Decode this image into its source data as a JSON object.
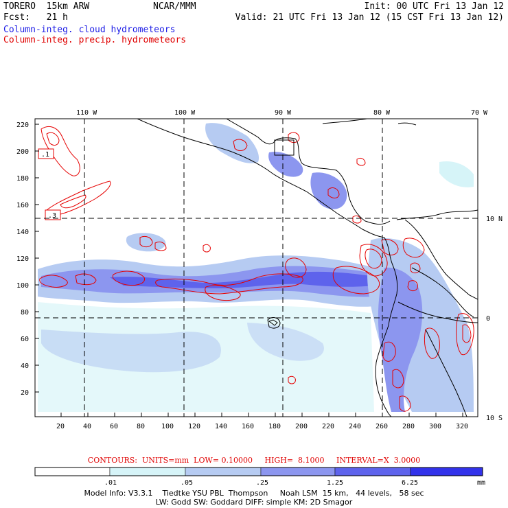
{
  "header": {
    "title": "TORERO  15km ARW",
    "org": "NCAR/MMM",
    "init": "Init: 00 UTC Fri 13 Jan 12",
    "fcst": "Fcst:   21 h",
    "valid": "Valid: 21 UTC Fri 13 Jan 12 (15 CST Fri 13 Jan 12)"
  },
  "fields": {
    "cloud": "Column-integ. cloud hydrometeors",
    "precip": "Column-integ. precip. hydrometeors"
  },
  "colors": {
    "cloud_text": "#1e1ee6",
    "precip_text": "#e00000",
    "contour": "#e60000",
    "coast": "#000000"
  },
  "map": {
    "lon_labels": [
      "110 W",
      "100 W",
      "90 W",
      "80 W",
      "70 W"
    ],
    "lat_labels": [
      "10 N",
      "0",
      "10 S"
    ],
    "y_ticks": [
      "220",
      "200",
      "180",
      "160",
      "140",
      "120",
      "100",
      "80",
      "60",
      "40",
      "20"
    ],
    "x_ticks": [
      "20",
      "40",
      "60",
      "80",
      "100",
      "120",
      "140",
      "160",
      "180",
      "200",
      "220",
      "240",
      "260",
      "280",
      "300",
      "320"
    ],
    "box_labels": [
      ".1",
      ".3"
    ]
  },
  "contour_info": "CONTOURS:  UNITS=mm  LOW= 0.10000     HIGH=  8.1000     INTERVAL=X  3.0000",
  "colorbar": {
    "labels": [
      ".01",
      ".05",
      ".25",
      "1.25",
      "6.25"
    ],
    "unit": "mm",
    "colors": [
      "#ffffff",
      "#d6f4f8",
      "#b6cbf2",
      "#8c96ef",
      "#5e63ec",
      "#3232ea",
      "#0f0fe6"
    ]
  },
  "footer": {
    "line1": "Model Info: V3.3.1    Tiedtke YSU PBL  Thompson     Noah LSM  15 km,   44 levels,   58 sec",
    "line2": "LW: Godd SW: Goddard DIFF: simple KM: 2D Smagor"
  }
}
